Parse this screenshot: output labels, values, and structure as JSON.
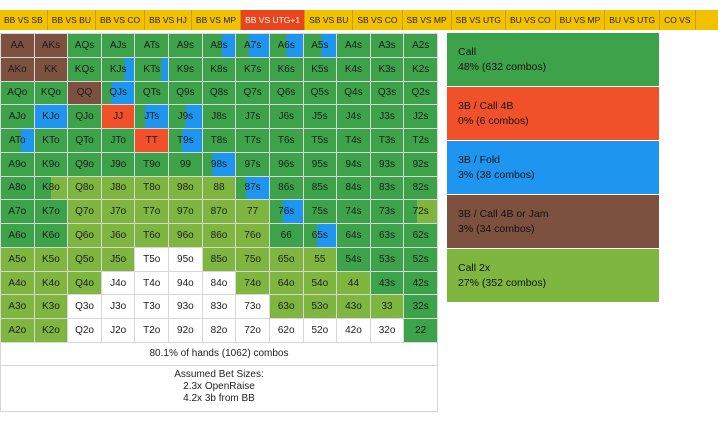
{
  "tabs": [
    {
      "label": "BB VS SB"
    },
    {
      "label": "BB VS BU"
    },
    {
      "label": "BB VS CO"
    },
    {
      "label": "BB VS HJ"
    },
    {
      "label": "BB VS MP"
    },
    {
      "label": "BB VS UTG+1",
      "active": true
    },
    {
      "label": "SB VS BU"
    },
    {
      "label": "SB VS CO"
    },
    {
      "label": "SB VS MP"
    },
    {
      "label": "SB VS UTG"
    },
    {
      "label": "BU VS CO"
    },
    {
      "label": "BU VS MP"
    },
    {
      "label": "BU VS UTG"
    },
    {
      "label": "CO VS"
    }
  ],
  "colors": {
    "call": "#3da34a",
    "threebet_call": "#f0502a",
    "threebet_fold": "#1e96f0",
    "threebet_jam": "#7d5140",
    "call2x": "#7fb640",
    "fold": "#ffffff"
  },
  "grid": {
    "rows": [
      [
        "AA",
        "AKs",
        "AQs",
        "AJs",
        "ATs",
        "A9s",
        "A8s",
        "A7s",
        "A6s",
        "A5s",
        "A4s",
        "A3s",
        "A2s"
      ],
      [
        "AKo",
        "KK",
        "KQs",
        "KJs",
        "KTs",
        "K9s",
        "K8s",
        "K7s",
        "K6s",
        "K5s",
        "K4s",
        "K3s",
        "K2s"
      ],
      [
        "AQo",
        "KQo",
        "QQ",
        "QJs",
        "QTs",
        "Q9s",
        "Q8s",
        "Q7s",
        "Q6s",
        "Q5s",
        "Q4s",
        "Q3s",
        "Q2s"
      ],
      [
        "AJo",
        "KJo",
        "QJo",
        "JJ",
        "JTs",
        "J9s",
        "J8s",
        "J7s",
        "J6s",
        "J5s",
        "J4s",
        "J3s",
        "J2s"
      ],
      [
        "ATo",
        "KTo",
        "QTo",
        "JTo",
        "TT",
        "T9s",
        "T8s",
        "T7s",
        "T6s",
        "T5s",
        "T4s",
        "T3s",
        "T2s"
      ],
      [
        "A9o",
        "K9o",
        "Q9o",
        "J9o",
        "T9o",
        "99",
        "98s",
        "97s",
        "96s",
        "95s",
        "94s",
        "93s",
        "92s"
      ],
      [
        "A8o",
        "K8o",
        "Q8o",
        "J8o",
        "T8o",
        "98o",
        "88",
        "87s",
        "86s",
        "85s",
        "84s",
        "83s",
        "82s"
      ],
      [
        "A7o",
        "K7o",
        "Q7o",
        "J7o",
        "T7o",
        "97o",
        "87o",
        "77",
        "76s",
        "75s",
        "74s",
        "73s",
        "72s"
      ],
      [
        "A6o",
        "K6o",
        "Q6o",
        "J6o",
        "T6o",
        "96o",
        "86o",
        "76o",
        "66",
        "65s",
        "64s",
        "63s",
        "62s"
      ],
      [
        "A5o",
        "K5o",
        "Q5o",
        "J5o",
        "T5o",
        "95o",
        "85o",
        "75o",
        "65o",
        "55",
        "54s",
        "53s",
        "52s"
      ],
      [
        "A4o",
        "K4o",
        "Q4o",
        "J4o",
        "T4o",
        "94o",
        "84o",
        "74o",
        "64o",
        "54o",
        "44",
        "43s",
        "42s"
      ],
      [
        "A3o",
        "K3o",
        "Q3o",
        "J3o",
        "T3o",
        "93o",
        "83o",
        "73o",
        "63o",
        "53o",
        "43o",
        "33",
        "32s"
      ],
      [
        "A2o",
        "K2o",
        "Q2o",
        "J2o",
        "T2o",
        "92o",
        "82o",
        "72o",
        "62o",
        "52o",
        "42o",
        "32o",
        "22"
      ]
    ],
    "actions": [
      [
        "m",
        "m",
        "c",
        "c",
        "c",
        "c",
        "c:f|0.6",
        "c:f|0.4",
        "c:f|0.5",
        "c:f|0.55",
        "c",
        "c",
        "c"
      ],
      [
        "m",
        "m",
        "c",
        "c:f|0.7",
        "c:f|0.8",
        "c",
        "c",
        "c",
        "c",
        "c",
        "c",
        "c",
        "c"
      ],
      [
        "c",
        "c",
        "m",
        "c:f|0.3",
        "c",
        "c",
        "c",
        "c",
        "c",
        "c",
        "c",
        "c",
        "c"
      ],
      [
        "c",
        "f",
        "c",
        "r",
        "c:f|0.3",
        "c:f|0.5",
        "c",
        "c",
        "c",
        "c",
        "c",
        "c",
        "c"
      ],
      [
        "c:f|0.6",
        "c",
        "c",
        "c",
        "r",
        "c:f|0.4",
        "c",
        "c",
        "c",
        "c",
        "c",
        "c",
        "c"
      ],
      [
        "c",
        "c",
        "c",
        "c",
        "c",
        "c",
        "c:f|0.3",
        "c",
        "c",
        "c",
        "c",
        "c",
        "c"
      ],
      [
        "c",
        "c:g|0.5",
        "g",
        "g",
        "g",
        "g",
        "g",
        "c:f|0.3",
        "c",
        "c",
        "c",
        "c",
        "c"
      ],
      [
        "c",
        "c",
        "g",
        "g",
        "g",
        "g",
        "g",
        "g",
        "c:f|0.4",
        "c",
        "c",
        "c",
        "c:g|0.4"
      ],
      [
        "c",
        "c",
        "g",
        "g",
        "g",
        "g",
        "g",
        "g",
        "c",
        "c:f|0.4",
        "c",
        "c",
        "c"
      ],
      [
        "g",
        "g",
        "g",
        "g",
        "w",
        "w",
        "g",
        "g",
        "g",
        "g",
        "c",
        "c",
        "c"
      ],
      [
        "g",
        "g",
        "g",
        "w",
        "w",
        "w",
        "w",
        "g",
        "g",
        "g",
        "g",
        "c",
        "c"
      ],
      [
        "g",
        "g",
        "w",
        "w",
        "w",
        "w",
        "w",
        "w",
        "g",
        "g",
        "g",
        "g",
        "c"
      ],
      [
        "g",
        "g",
        "w",
        "w",
        "w",
        "w",
        "w",
        "w",
        "w",
        "w",
        "w",
        "w",
        "c"
      ]
    ]
  },
  "summary": {
    "combos_text": "80.1% of hands (1062) combos",
    "bet_sizes_title": "Assumed Bet Sizes:",
    "bet_sizes": [
      "2.3x OpenRaise",
      "4.2x 3b from BB"
    ]
  },
  "legend": [
    {
      "title": "Call",
      "detail": "48% (632 combos)",
      "color": "#3da34a"
    },
    {
      "title": "3B / Call 4B",
      "detail": "0% (6 combos)",
      "color": "#f0502a"
    },
    {
      "title": "3B / Fold",
      "detail": "3% (38 combos)",
      "color": "#1e96f0"
    },
    {
      "title": "3B / Call 4B or Jam",
      "detail": "3% (34 combos)",
      "color": "#7d5140"
    },
    {
      "title": "Call 2x",
      "detail": "27% (352 combos)",
      "color": "#7fb640"
    }
  ]
}
